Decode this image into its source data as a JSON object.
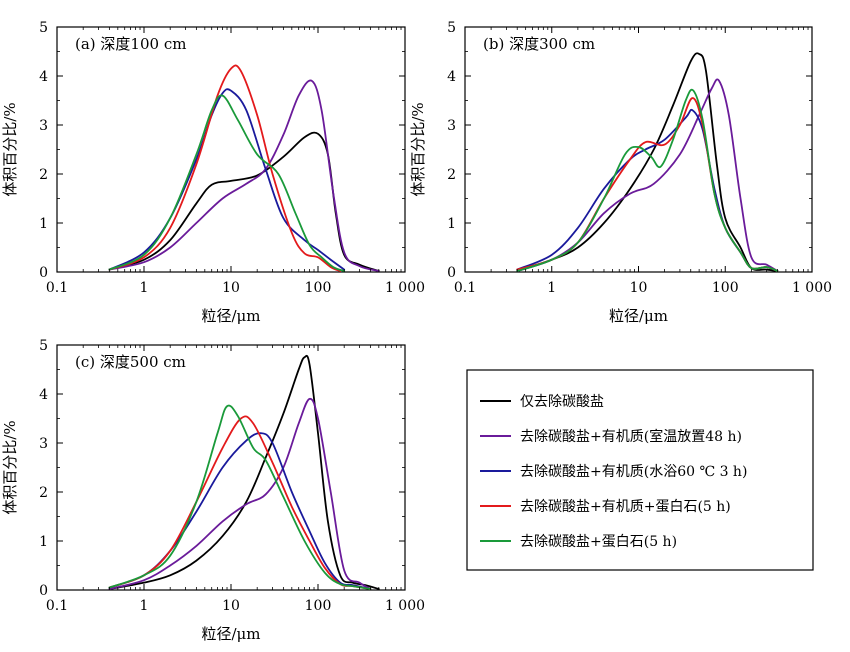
{
  "legend": {
    "entries": [
      {
        "label": "仅去除碳酸盐",
        "color": "#000000"
      },
      {
        "label": "去除碳酸盐+有机质(室温放置48 h)",
        "color": "#6a1b9a"
      },
      {
        "label": "去除碳酸盐+有机质(水浴60 ℃ 3 h)",
        "color": "#1a1a9c"
      },
      {
        "label": "去除碳酸盐+有机质+蛋白石(5 h)",
        "color": "#e31a1c"
      },
      {
        "label": "去除碳酸盐+蛋白石(5 h)",
        "color": "#1a9a3a"
      }
    ]
  },
  "chart_data": [
    {
      "type": "line",
      "title": "(a) 深度100 cm",
      "xlabel": "粒径/μm",
      "ylabel": "体积百分比/%",
      "xscale": "log",
      "xlim": [
        0.1,
        1000
      ],
      "ylim": [
        0,
        5
      ],
      "xticks": [
        0.1,
        1,
        10,
        100,
        1000
      ],
      "xtick_labels": [
        "0.1",
        "1",
        "10",
        "100",
        "1 000"
      ],
      "yticks": [
        0,
        1,
        2,
        3,
        4,
        5
      ],
      "ytick_labels": [
        "0",
        "1",
        "2",
        "3",
        "4",
        "5"
      ],
      "series": [
        {
          "color": "#000000",
          "points": [
            [
              0.4,
              0.05
            ],
            [
              1,
              0.25
            ],
            [
              2,
              0.65
            ],
            [
              4,
              1.4
            ],
            [
              6,
              1.78
            ],
            [
              10,
              1.86
            ],
            [
              20,
              1.97
            ],
            [
              40,
              2.35
            ],
            [
              70,
              2.75
            ],
            [
              100,
              2.82
            ],
            [
              130,
              2.4
            ],
            [
              160,
              1.2
            ],
            [
              200,
              0.35
            ],
            [
              300,
              0.15
            ],
            [
              500,
              0.02
            ]
          ]
        },
        {
          "color": "#6a1b9a",
          "points": [
            [
              0.4,
              0.05
            ],
            [
              1,
              0.2
            ],
            [
              2,
              0.5
            ],
            [
              4,
              1.0
            ],
            [
              8,
              1.5
            ],
            [
              15,
              1.8
            ],
            [
              25,
              2.1
            ],
            [
              40,
              2.8
            ],
            [
              60,
              3.6
            ],
            [
              85,
              3.9
            ],
            [
              110,
              3.3
            ],
            [
              150,
              1.6
            ],
            [
              200,
              0.4
            ],
            [
              300,
              0.12
            ],
            [
              500,
              0.02
            ]
          ]
        },
        {
          "color": "#1a1a9c",
          "points": [
            [
              0.4,
              0.05
            ],
            [
              1,
              0.4
            ],
            [
              2,
              1.1
            ],
            [
              4,
              2.3
            ],
            [
              6,
              3.2
            ],
            [
              8,
              3.65
            ],
            [
              10,
              3.7
            ],
            [
              15,
              3.3
            ],
            [
              25,
              2.1
            ],
            [
              40,
              1.1
            ],
            [
              70,
              0.65
            ],
            [
              100,
              0.45
            ],
            [
              140,
              0.25
            ],
            [
              200,
              0.05
            ]
          ]
        },
        {
          "color": "#e31a1c",
          "points": [
            [
              0.4,
              0.05
            ],
            [
              1,
              0.3
            ],
            [
              2,
              0.9
            ],
            [
              4,
              2.2
            ],
            [
              7,
              3.6
            ],
            [
              10,
              4.15
            ],
            [
              13,
              4.1
            ],
            [
              20,
              3.2
            ],
            [
              30,
              2.0
            ],
            [
              50,
              0.8
            ],
            [
              70,
              0.38
            ],
            [
              100,
              0.3
            ],
            [
              140,
              0.1
            ],
            [
              180,
              0.02
            ]
          ]
        },
        {
          "color": "#1a9a3a",
          "points": [
            [
              0.4,
              0.05
            ],
            [
              1,
              0.35
            ],
            [
              2,
              1.1
            ],
            [
              4,
              2.4
            ],
            [
              6,
              3.3
            ],
            [
              8,
              3.6
            ],
            [
              12,
              3.1
            ],
            [
              20,
              2.4
            ],
            [
              35,
              2.0
            ],
            [
              55,
              1.2
            ],
            [
              80,
              0.55
            ],
            [
              110,
              0.3
            ],
            [
              150,
              0.1
            ],
            [
              200,
              0.02
            ]
          ]
        }
      ]
    },
    {
      "type": "line",
      "title": "(b) 深度300 cm",
      "xlabel": "粒径/μm",
      "ylabel": "体积百分比/%",
      "xscale": "log",
      "xlim": [
        0.1,
        1000
      ],
      "ylim": [
        0,
        5
      ],
      "xticks": [
        0.1,
        1,
        10,
        100,
        1000
      ],
      "xtick_labels": [
        "0.1",
        "1",
        "10",
        "100",
        "1 000"
      ],
      "yticks": [
        0,
        1,
        2,
        3,
        4,
        5
      ],
      "ytick_labels": [
        "0",
        "1",
        "2",
        "3",
        "4",
        "5"
      ],
      "series": [
        {
          "color": "#000000",
          "points": [
            [
              0.4,
              0.02
            ],
            [
              1,
              0.25
            ],
            [
              2,
              0.5
            ],
            [
              4,
              1.0
            ],
            [
              8,
              1.7
            ],
            [
              15,
              2.5
            ],
            [
              25,
              3.4
            ],
            [
              40,
              4.3
            ],
            [
              50,
              4.45
            ],
            [
              60,
              4.1
            ],
            [
              80,
              2.2
            ],
            [
              100,
              1.1
            ],
            [
              150,
              0.5
            ],
            [
              200,
              0.08
            ],
            [
              300,
              0.05
            ],
            [
              400,
              0.02
            ]
          ]
        },
        {
          "color": "#6a1b9a",
          "points": [
            [
              0.4,
              0.02
            ],
            [
              1,
              0.25
            ],
            [
              2,
              0.6
            ],
            [
              4,
              1.2
            ],
            [
              8,
              1.6
            ],
            [
              15,
              1.8
            ],
            [
              30,
              2.4
            ],
            [
              50,
              3.2
            ],
            [
              70,
              3.75
            ],
            [
              85,
              3.9
            ],
            [
              110,
              3.2
            ],
            [
              150,
              1.5
            ],
            [
              200,
              0.3
            ],
            [
              300,
              0.15
            ],
            [
              400,
              0.02
            ]
          ]
        },
        {
          "color": "#1a1a9c",
          "points": [
            [
              0.4,
              0.05
            ],
            [
              1,
              0.35
            ],
            [
              2,
              0.9
            ],
            [
              4,
              1.7
            ],
            [
              8,
              2.3
            ],
            [
              12,
              2.5
            ],
            [
              20,
              2.7
            ],
            [
              35,
              3.15
            ],
            [
              42,
              3.3
            ],
            [
              55,
              2.9
            ],
            [
              75,
              1.7
            ],
            [
              100,
              0.9
            ],
            [
              150,
              0.4
            ],
            [
              200,
              0.08
            ],
            [
              300,
              0.1
            ],
            [
              400,
              0.02
            ]
          ]
        },
        {
          "color": "#e31a1c",
          "points": [
            [
              0.4,
              0.05
            ],
            [
              1,
              0.25
            ],
            [
              2,
              0.6
            ],
            [
              4,
              1.5
            ],
            [
              8,
              2.3
            ],
            [
              12,
              2.65
            ],
            [
              20,
              2.6
            ],
            [
              30,
              3.0
            ],
            [
              42,
              3.55
            ],
            [
              55,
              3.0
            ],
            [
              75,
              1.6
            ],
            [
              100,
              0.9
            ],
            [
              150,
              0.4
            ],
            [
              200,
              0.08
            ],
            [
              300,
              0.1
            ],
            [
              400,
              0.02
            ]
          ]
        },
        {
          "color": "#1a9a3a",
          "points": [
            [
              0.4,
              0.02
            ],
            [
              1,
              0.25
            ],
            [
              2,
              0.6
            ],
            [
              4,
              1.5
            ],
            [
              7,
              2.4
            ],
            [
              10,
              2.55
            ],
            [
              14,
              2.35
            ],
            [
              18,
              2.15
            ],
            [
              25,
              2.7
            ],
            [
              35,
              3.5
            ],
            [
              43,
              3.7
            ],
            [
              55,
              3.1
            ],
            [
              75,
              1.6
            ],
            [
              100,
              0.9
            ],
            [
              150,
              0.4
            ],
            [
              200,
              0.08
            ],
            [
              300,
              0.1
            ],
            [
              400,
              0.02
            ]
          ]
        }
      ]
    },
    {
      "type": "line",
      "title": "(c) 深度500 cm",
      "xlabel": "粒径/μm",
      "ylabel": "体积百分比/%",
      "xscale": "log",
      "xlim": [
        0.1,
        1000
      ],
      "ylim": [
        0,
        5
      ],
      "xticks": [
        0.1,
        1,
        10,
        100,
        1000
      ],
      "xtick_labels": [
        "0.1",
        "1",
        "10",
        "100",
        "1 000"
      ],
      "yticks": [
        0,
        1,
        2,
        3,
        4,
        5
      ],
      "ytick_labels": [
        "0",
        "1",
        "2",
        "3",
        "4",
        "5"
      ],
      "series": [
        {
          "color": "#000000",
          "points": [
            [
              0.4,
              0.02
            ],
            [
              1,
              0.15
            ],
            [
              2,
              0.3
            ],
            [
              4,
              0.6
            ],
            [
              8,
              1.1
            ],
            [
              15,
              1.8
            ],
            [
              25,
              2.7
            ],
            [
              40,
              3.6
            ],
            [
              60,
              4.5
            ],
            [
              70,
              4.75
            ],
            [
              80,
              4.6
            ],
            [
              100,
              3.2
            ],
            [
              130,
              1.4
            ],
            [
              180,
              0.3
            ],
            [
              250,
              0.15
            ],
            [
              350,
              0.1
            ],
            [
              500,
              0.02
            ]
          ]
        },
        {
          "color": "#6a1b9a",
          "points": [
            [
              0.4,
              0.02
            ],
            [
              1,
              0.2
            ],
            [
              2,
              0.5
            ],
            [
              4,
              0.9
            ],
            [
              8,
              1.4
            ],
            [
              15,
              1.75
            ],
            [
              25,
              1.95
            ],
            [
              40,
              2.5
            ],
            [
              60,
              3.4
            ],
            [
              80,
              3.9
            ],
            [
              100,
              3.5
            ],
            [
              140,
              2.0
            ],
            [
              200,
              0.4
            ],
            [
              300,
              0.15
            ],
            [
              400,
              0.02
            ]
          ]
        },
        {
          "color": "#1a1a9c",
          "points": [
            [
              0.4,
              0.05
            ],
            [
              1,
              0.3
            ],
            [
              2,
              0.8
            ],
            [
              4,
              1.6
            ],
            [
              8,
              2.5
            ],
            [
              15,
              3.05
            ],
            [
              22,
              3.2
            ],
            [
              30,
              3.0
            ],
            [
              50,
              2.0
            ],
            [
              80,
              1.2
            ],
            [
              120,
              0.55
            ],
            [
              180,
              0.15
            ],
            [
              250,
              0.1
            ],
            [
              400,
              0.02
            ]
          ]
        },
        {
          "color": "#e31a1c",
          "points": [
            [
              0.4,
              0.05
            ],
            [
              1,
              0.3
            ],
            [
              2,
              0.8
            ],
            [
              4,
              1.8
            ],
            [
              8,
              2.9
            ],
            [
              13,
              3.5
            ],
            [
              18,
              3.4
            ],
            [
              30,
              2.6
            ],
            [
              50,
              1.7
            ],
            [
              80,
              1.0
            ],
            [
              120,
              0.45
            ],
            [
              180,
              0.12
            ],
            [
              250,
              0.08
            ],
            [
              400,
              0.02
            ]
          ]
        },
        {
          "color": "#1a9a3a",
          "points": [
            [
              0.4,
              0.05
            ],
            [
              1,
              0.3
            ],
            [
              2,
              0.7
            ],
            [
              4,
              1.8
            ],
            [
              7,
              3.2
            ],
            [
              9,
              3.75
            ],
            [
              12,
              3.55
            ],
            [
              18,
              2.9
            ],
            [
              25,
              2.65
            ],
            [
              40,
              1.9
            ],
            [
              70,
              1.0
            ],
            [
              120,
              0.35
            ],
            [
              180,
              0.12
            ],
            [
              250,
              0.08
            ],
            [
              400,
              0.02
            ]
          ]
        }
      ]
    }
  ]
}
